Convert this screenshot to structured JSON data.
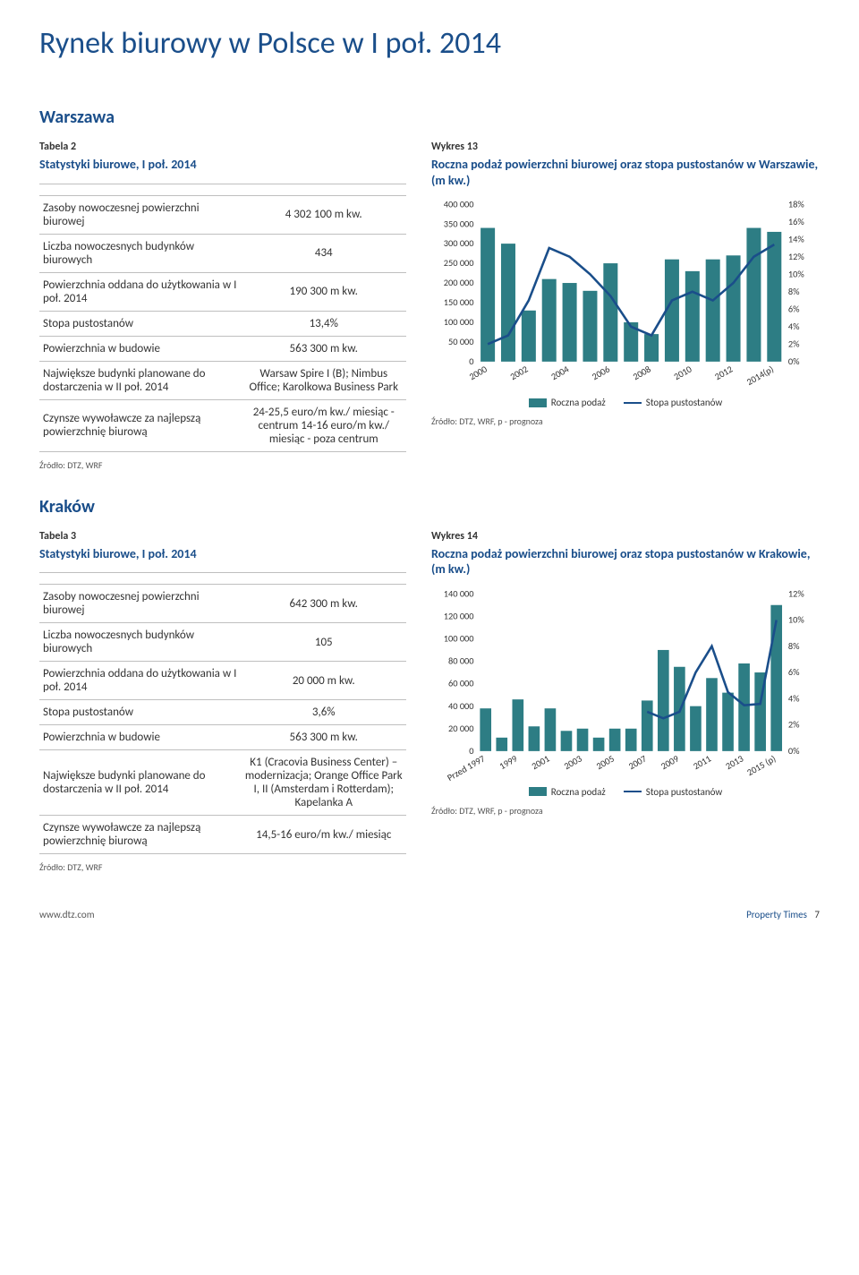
{
  "page_title": "Rynek biurowy w Polsce w I poł. 2014",
  "footer": {
    "url": "www.dtz.com",
    "brand": "Property Times",
    "page": "7"
  },
  "sections": [
    {
      "city": "Warszawa",
      "table_label": "Tabela 2",
      "stats_title": "Statystyki biurowe, I poł. 2014",
      "rows": [
        {
          "k": "Zasoby nowoczesnej powierzchni biurowej",
          "v": "4 302 100 m kw."
        },
        {
          "k": "Liczba nowoczesnych budynków biurowych",
          "v": "434"
        },
        {
          "k": "Powierzchnia oddana do użytkowania w I poł. 2014",
          "v": "190 300 m kw."
        },
        {
          "k": "Stopa pustostanów",
          "v": "13,4%"
        },
        {
          "k": "Powierzchnia w budowie",
          "v": "563 300 m kw."
        },
        {
          "k": "Największe budynki planowane do dostarczenia w II poł. 2014",
          "v": "Warsaw Spire I (B); Nimbus Office; Karolkowa Business Park"
        },
        {
          "k": "Czynsze wywoławcze za najlepszą powierzchnię biurową",
          "v": "24-25,5 euro/m kw./ miesiąc - centrum 14-16 euro/m kw./ miesiąc - poza centrum"
        }
      ],
      "table_source": "Źródło: DTZ, WRF",
      "chart_label": "Wykres 13",
      "chart_title": "Roczna podaż powierzchni biurowej oraz stopa pustostanów w Warszawie, (m kw.)",
      "chart_source": "Źródło: DTZ, WRF, p - prognoza",
      "legend": {
        "bar": "Roczna podaż",
        "line": "Stopa pustostanów"
      },
      "chart": {
        "type": "combo-bar-line",
        "background_color": "#ffffff",
        "bar_color": "#2d7d84",
        "line_color": "#1a4e8a",
        "text_color": "#333333",
        "axis_fontsize": 10,
        "y_left": {
          "min": 0,
          "max": 400000,
          "step": 50000,
          "ticks": [
            "0",
            "50 000",
            "100 000",
            "150 000",
            "200 000",
            "250 000",
            "300 000",
            "350 000",
            "400 000"
          ]
        },
        "y_right": {
          "min": 0,
          "max": 18,
          "step": 2,
          "ticks": [
            "0%",
            "2%",
            "4%",
            "6%",
            "8%",
            "10%",
            "12%",
            "14%",
            "16%",
            "18%"
          ]
        },
        "x_labels": [
          "2000",
          "2002",
          "2004",
          "2006",
          "2008",
          "2010",
          "2012",
          "2014(p)"
        ],
        "bars": [
          340000,
          300000,
          130000,
          210000,
          200000,
          180000,
          250000,
          100000,
          70000,
          260000,
          230000,
          260000,
          270000,
          340000,
          330000
        ],
        "line": [
          2.0,
          3.0,
          7.0,
          13.0,
          12.0,
          10.0,
          7.5,
          4.0,
          3.0,
          7.0,
          8.0,
          7.0,
          9.0,
          12.0,
          13.4
        ]
      }
    },
    {
      "city": "Kraków",
      "table_label": "Tabela 3",
      "stats_title": "Statystyki biurowe, I poł. 2014",
      "rows": [
        {
          "k": "Zasoby nowoczesnej powierzchni biurowej",
          "v": "642 300 m kw."
        },
        {
          "k": "Liczba nowoczesnych budynków biurowych",
          "v": "105"
        },
        {
          "k": "Powierzchnia oddana do użytkowania w I poł. 2014",
          "v": "20 000 m kw."
        },
        {
          "k": "Stopa pustostanów",
          "v": "3,6%"
        },
        {
          "k": "Powierzchnia w budowie",
          "v": "563 300 m kw."
        },
        {
          "k": "Największe budynki planowane do dostarczenia w II poł. 2014",
          "v": "K1 (Cracovia Business Center) – modernizacja; Orange Office Park I, II (Amsterdam i Rotterdam); Kapelanka A"
        },
        {
          "k": "Czynsze wywoławcze za najlepszą powierzchnię biurową",
          "v": "14,5-16 euro/m kw./ miesiąc"
        }
      ],
      "table_source": "Źródło: DTZ, WRF",
      "chart_label": "Wykres 14",
      "chart_title": "Roczna podaż powierzchni biurowej oraz stopa pustostanów w Krakowie, (m kw.)",
      "chart_source": "Źródło: DTZ, WRF, p - prognoza",
      "legend": {
        "bar": "Roczna podaż",
        "line": "Stopa pustostanów"
      },
      "chart": {
        "type": "combo-bar-line",
        "background_color": "#ffffff",
        "bar_color": "#2d7d84",
        "line_color": "#1a4e8a",
        "text_color": "#333333",
        "axis_fontsize": 10,
        "y_left": {
          "min": 0,
          "max": 140000,
          "step": 20000,
          "ticks": [
            "0",
            "20 000",
            "40 000",
            "60 000",
            "80 000",
            "100 000",
            "120 000",
            "140 000"
          ]
        },
        "y_right": {
          "min": 0,
          "max": 12,
          "step": 2,
          "ticks": [
            "0%",
            "2%",
            "4%",
            "6%",
            "8%",
            "10%",
            "12%"
          ]
        },
        "x_labels": [
          "Przed 1997",
          "1999",
          "2001",
          "2003",
          "2005",
          "2007",
          "2009",
          "2011",
          "2013",
          "2015 (p)"
        ],
        "bars": [
          38000,
          12000,
          46000,
          22000,
          38000,
          18000,
          20000,
          12000,
          20000,
          20000,
          45000,
          90000,
          75000,
          40000,
          65000,
          52000,
          78000,
          70000,
          130000
        ],
        "line": [
          null,
          null,
          null,
          null,
          null,
          null,
          null,
          null,
          null,
          null,
          3.0,
          2.5,
          3.0,
          6.0,
          8.0,
          4.5,
          3.5,
          3.6,
          10.0
        ]
      }
    }
  ]
}
